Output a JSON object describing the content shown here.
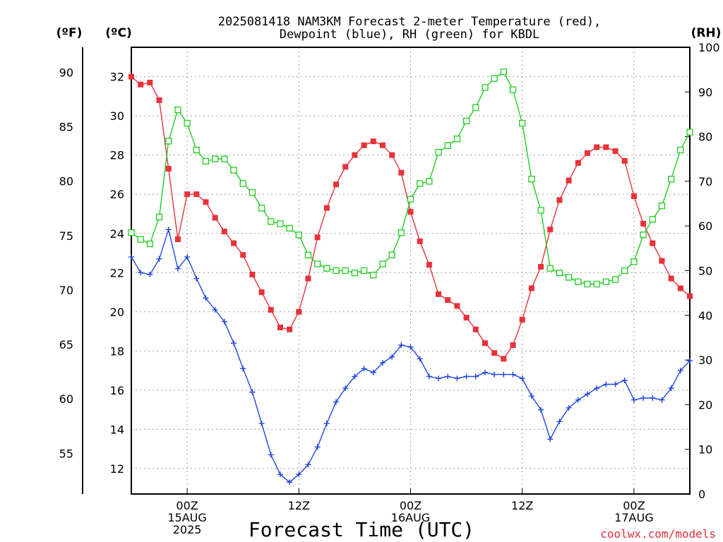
{
  "header": {
    "title_line1": "2025081418 NAM3KM Forecast 2-meter Temperature (red),",
    "title_line2": "Dewpoint (blue), RH (green) for KBDL",
    "unit_f": "(ºF)",
    "unit_c": "(ºC)",
    "unit_rh": "(RH)"
  },
  "footer": {
    "xlabel": "Forecast Time (UTC)",
    "credit": "coolwx.com/models"
  },
  "colors": {
    "temperature": "#e8323a",
    "dewpoint": "#2046e0",
    "rh": "#22cc22",
    "grid": "#a0a0a0"
  },
  "chart_data": {
    "type": "line",
    "title": "2025081418 NAM3KM Forecast 2-meter Temperature (red), Dewpoint (blue), RH (green) for KBDL",
    "xlabel": "Forecast Time (UTC)",
    "x_units": "hours since 2025-08-14 18Z",
    "x_range": [
      0,
      60
    ],
    "x_ticks": [
      {
        "x": 6,
        "label": [
          "00Z",
          "15AUG",
          "2025"
        ]
      },
      {
        "x": 18,
        "label": [
          "12Z"
        ]
      },
      {
        "x": 30,
        "label": [
          "00Z",
          "16AUG"
        ]
      },
      {
        "x": 42,
        "label": [
          "12Z"
        ]
      },
      {
        "x": 54,
        "label": [
          "00Z",
          "17AUG"
        ]
      }
    ],
    "y_left_c": {
      "label": "(ºC)",
      "range": [
        10.7,
        33.5
      ],
      "ticks": [
        12,
        14,
        16,
        18,
        20,
        22,
        24,
        26,
        28,
        30,
        32
      ]
    },
    "y_left_f": {
      "label": "(ºF)",
      "ticks": [
        55,
        60,
        65,
        70,
        75,
        80,
        85,
        90
      ]
    },
    "y_right_rh": {
      "label": "(RH)",
      "range": [
        0,
        100
      ],
      "ticks": [
        0,
        10,
        20,
        30,
        40,
        50,
        60,
        70,
        80,
        90,
        100
      ]
    },
    "grid": true,
    "series": [
      {
        "name": "Temperature",
        "color": "#e8323a",
        "axis": "celsius",
        "marker": "filled-square",
        "x": [
          0,
          1,
          2,
          3,
          4,
          5,
          6,
          7,
          8,
          9,
          10,
          11,
          12,
          13,
          14,
          15,
          16,
          17,
          18,
          19,
          20,
          21,
          22,
          23,
          24,
          25,
          26,
          27,
          28,
          29,
          30,
          31,
          32,
          33,
          34,
          35,
          36,
          37,
          38,
          39,
          40,
          41,
          42,
          43,
          44,
          45,
          46,
          47,
          48,
          49,
          50,
          51,
          52,
          53,
          54,
          55,
          56,
          57,
          58,
          59,
          60
        ],
        "values": [
          32.0,
          31.6,
          31.7,
          30.8,
          27.3,
          23.7,
          26.0,
          26.0,
          25.6,
          24.8,
          24.1,
          23.5,
          22.9,
          21.9,
          21.0,
          20.1,
          19.2,
          19.1,
          20.0,
          21.7,
          23.8,
          25.3,
          26.5,
          27.4,
          28.0,
          28.5,
          28.7,
          28.5,
          28.0,
          27.1,
          25.1,
          23.6,
          22.4,
          20.9,
          20.6,
          20.3,
          19.7,
          19.1,
          18.4,
          17.9,
          17.6,
          18.3,
          19.6,
          21.2,
          22.3,
          24.2,
          25.7,
          26.7,
          27.6,
          28.1,
          28.4,
          28.4,
          28.2,
          27.7,
          25.9,
          24.5,
          23.5,
          22.6,
          21.7,
          21.2,
          20.8
        ]
      },
      {
        "name": "Dewpoint",
        "color": "#2046e0",
        "axis": "celsius",
        "marker": "plus",
        "x": [
          0,
          1,
          2,
          3,
          4,
          5,
          6,
          7,
          8,
          9,
          10,
          11,
          12,
          13,
          14,
          15,
          16,
          17,
          18,
          19,
          20,
          21,
          22,
          23,
          24,
          25,
          26,
          27,
          28,
          29,
          30,
          31,
          32,
          33,
          34,
          35,
          36,
          37,
          38,
          39,
          40,
          41,
          42,
          43,
          44,
          45,
          46,
          47,
          48,
          49,
          50,
          51,
          52,
          53,
          54,
          55,
          56,
          57,
          58,
          59,
          60
        ],
        "values": [
          22.8,
          22.0,
          21.9,
          22.7,
          24.2,
          22.2,
          22.8,
          21.7,
          20.7,
          20.1,
          19.5,
          18.4,
          17.1,
          15.9,
          14.3,
          12.7,
          11.7,
          11.3,
          11.7,
          12.2,
          13.1,
          14.3,
          15.4,
          16.1,
          16.7,
          17.1,
          16.9,
          17.4,
          17.7,
          18.3,
          18.2,
          17.6,
          16.7,
          16.6,
          16.7,
          16.6,
          16.7,
          16.7,
          16.9,
          16.8,
          16.8,
          16.8,
          16.6,
          15.7,
          15.0,
          13.5,
          14.4,
          15.1,
          15.5,
          15.8,
          16.1,
          16.3,
          16.3,
          16.5,
          15.5,
          15.6,
          15.6,
          15.5,
          16.1,
          17.0,
          17.5
        ]
      },
      {
        "name": "RH",
        "color": "#22cc22",
        "axis": "rh",
        "marker": "open-square",
        "x": [
          0,
          1,
          2,
          3,
          4,
          5,
          6,
          7,
          8,
          9,
          10,
          11,
          12,
          13,
          14,
          15,
          16,
          17,
          18,
          19,
          20,
          21,
          22,
          23,
          24,
          25,
          26,
          27,
          28,
          29,
          30,
          31,
          32,
          33,
          34,
          35,
          36,
          37,
          38,
          39,
          40,
          41,
          42,
          43,
          44,
          45,
          46,
          47,
          48,
          49,
          50,
          51,
          52,
          53,
          54,
          55,
          56,
          57,
          58,
          59,
          60
        ],
        "values": [
          58.5,
          57,
          56,
          62,
          79,
          86,
          83,
          77,
          74.5,
          75,
          75,
          72.5,
          69.5,
          67.5,
          64,
          61,
          60.5,
          59.5,
          58,
          53.5,
          51.5,
          50.5,
          50,
          50,
          49.5,
          50,
          49,
          51.5,
          53.5,
          58.5,
          66,
          69.5,
          70,
          76.5,
          78,
          79.5,
          83.5,
          86.5,
          91,
          93,
          94.5,
          90.5,
          83,
          70.5,
          63.5,
          50.5,
          49.5,
          48.5,
          47.5,
          47,
          47,
          47.5,
          48,
          50,
          52,
          58,
          61.5,
          64.5,
          70.5,
          77,
          81
        ]
      }
    ]
  }
}
